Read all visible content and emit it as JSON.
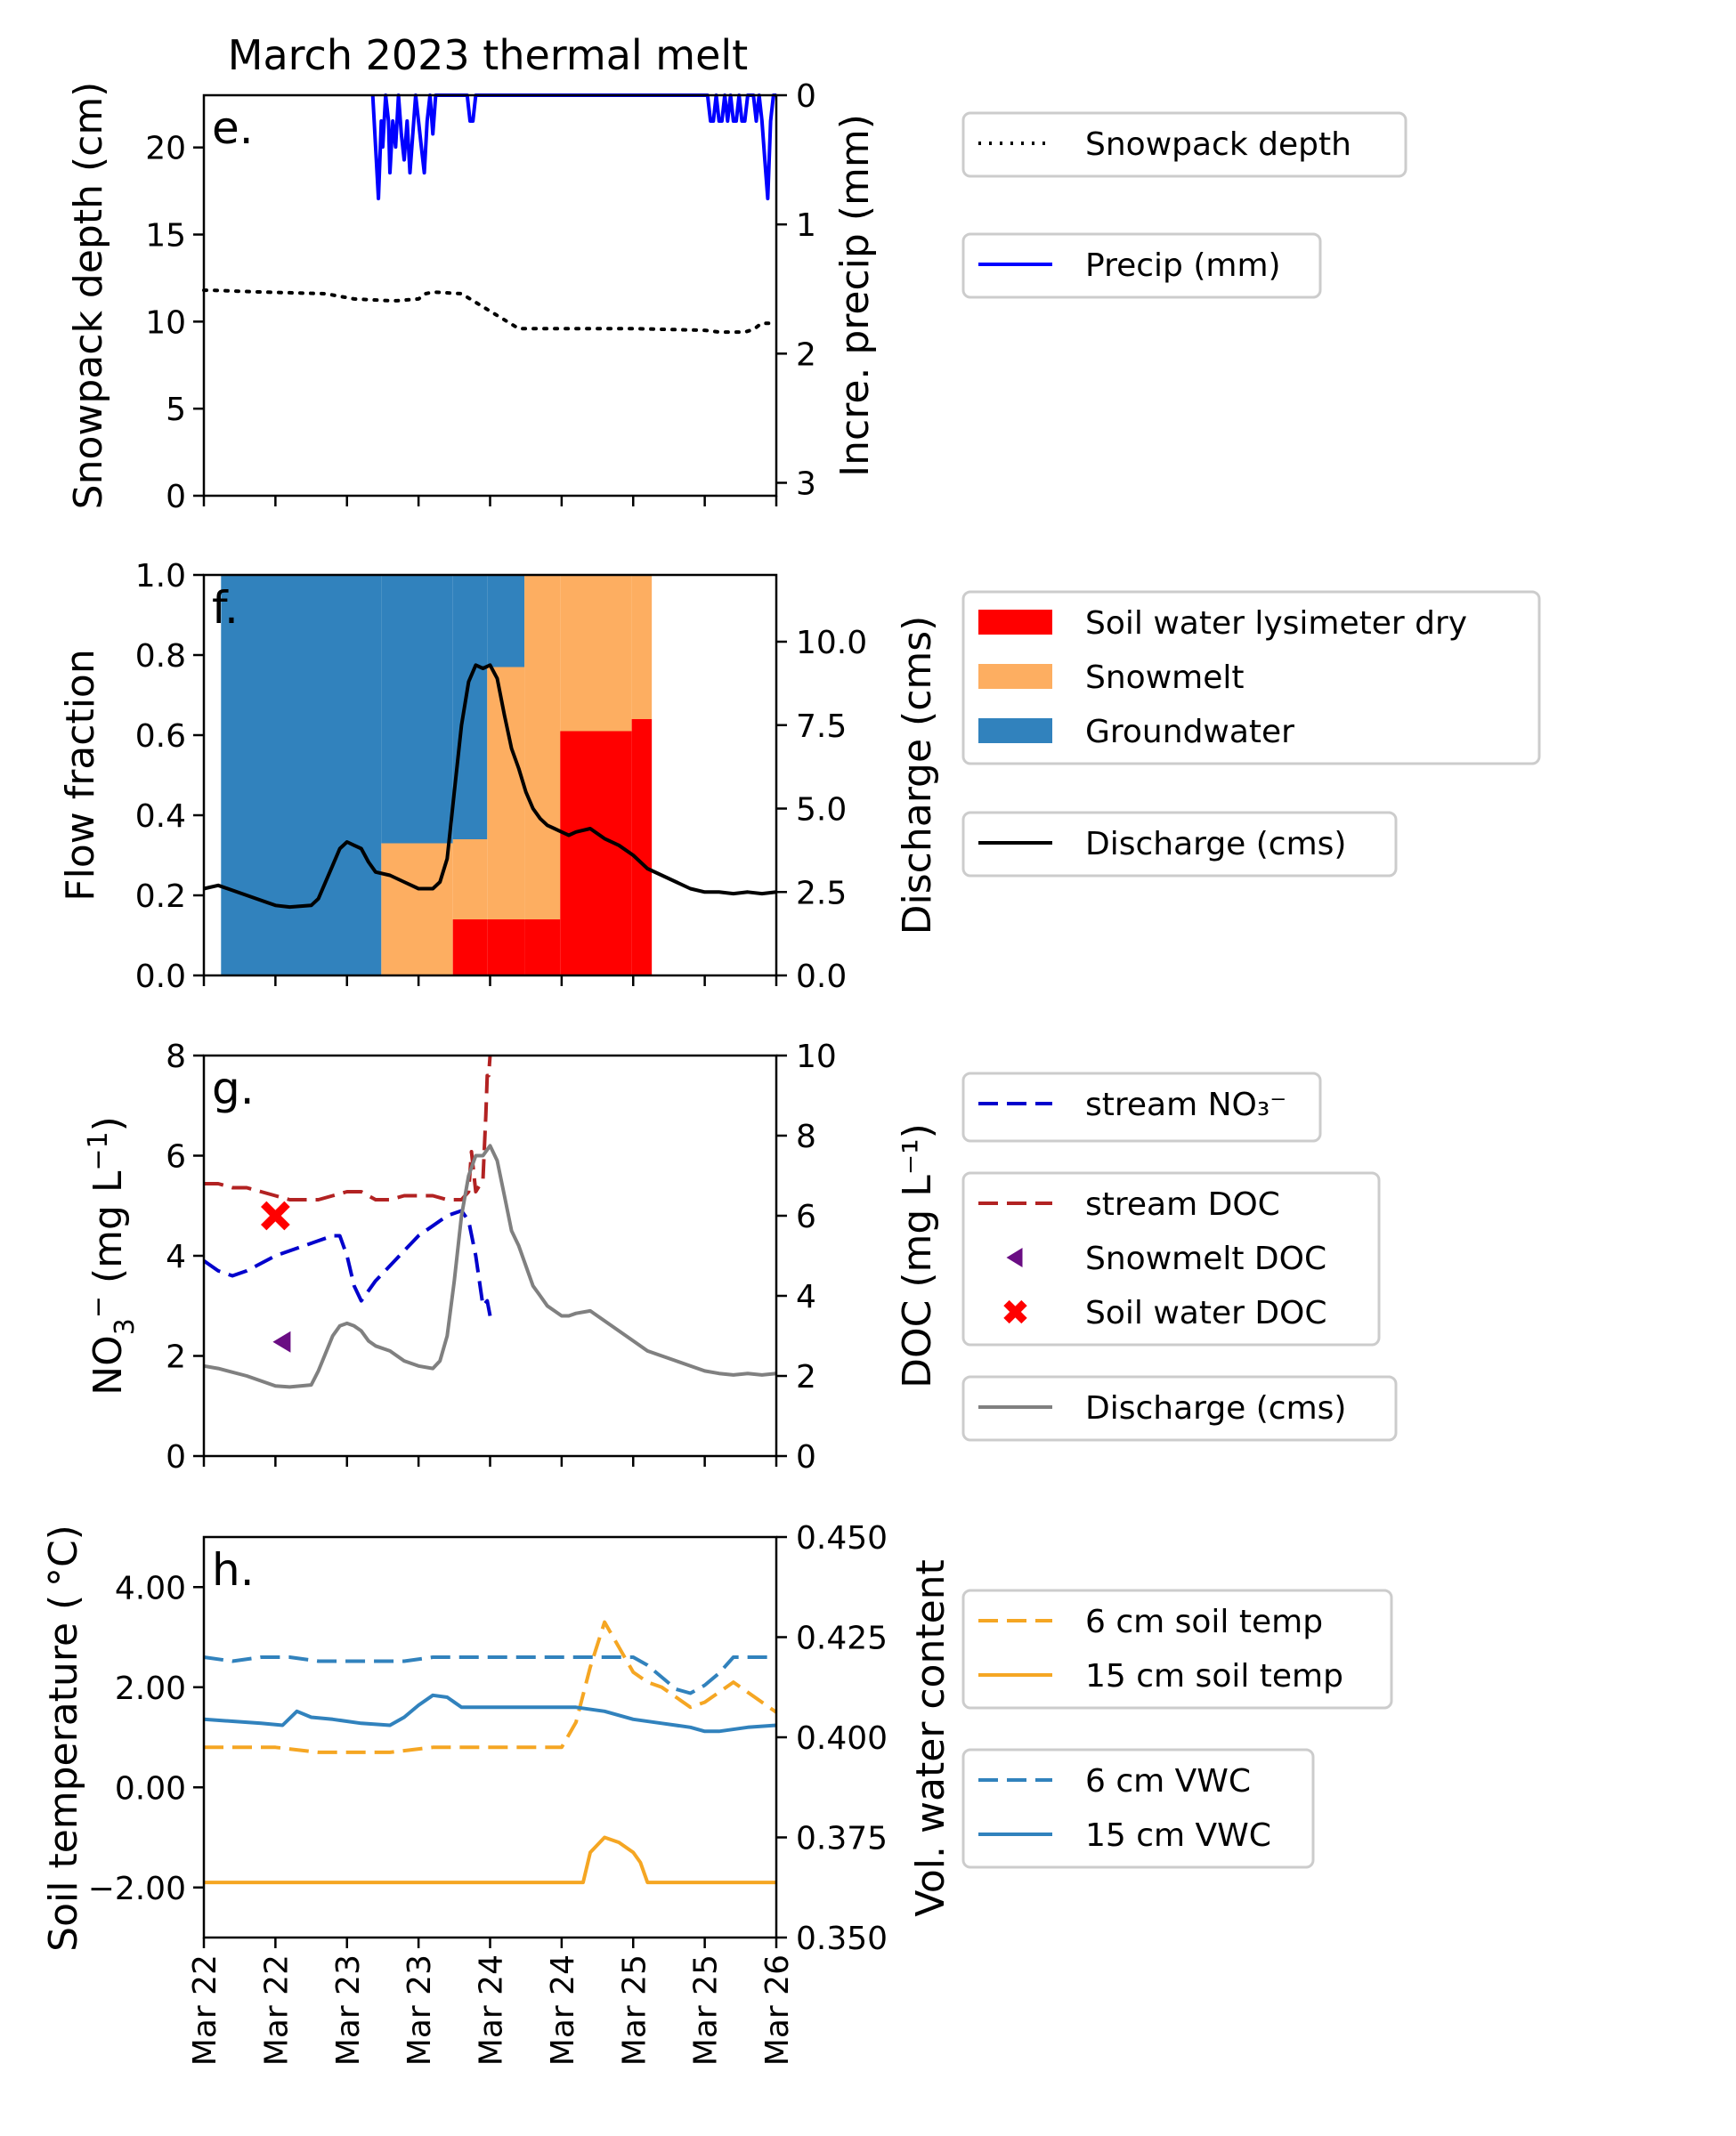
{
  "figure_title": "March 2023 thermal melt",
  "x_tick_labels": [
    "Mar 22",
    "Mar 22",
    "Mar 23",
    "Mar 23",
    "Mar 24",
    "Mar 24",
    "Mar 25",
    "Mar 25",
    "Mar 26"
  ],
  "chart_data": [
    {
      "type": "line",
      "panel": "e.",
      "ylabel": "Snowpack depth (cm)",
      "ylim": [
        0,
        23
      ],
      "yticks": [
        0,
        5,
        10,
        15,
        20
      ],
      "ylabel_right": "Incre. precip (mm)",
      "ylim_right": [
        0,
        3.1
      ],
      "y_right_inverted": true,
      "yticks_right": [
        0,
        1,
        2,
        3
      ],
      "xlim": [
        0,
        4
      ],
      "x_unit": "days since Mar 22 00:00",
      "series": [
        {
          "name": "Snowpack depth",
          "axis": "left",
          "style": "dotted",
          "color": "#000000",
          "x": [
            0.0,
            0.05,
            0.4,
            0.85,
            1.05,
            1.3,
            1.35,
            1.5,
            1.55,
            1.6,
            1.8,
            2.2,
            2.6,
            3.0,
            3.5,
            3.6,
            3.65,
            3.7,
            3.75,
            3.78,
            3.82,
            3.85,
            3.88,
            3.9,
            3.95,
            4.0
          ],
          "y": [
            11.8,
            11.8,
            11.7,
            11.6,
            11.3,
            11.2,
            11.2,
            11.3,
            11.6,
            11.7,
            11.6,
            9.6,
            9.6,
            9.6,
            9.5,
            9.4,
            9.4,
            9.4,
            9.4,
            9.4,
            9.5,
            9.6,
            9.8,
            9.9,
            9.9,
            9.9
          ]
        },
        {
          "name": "Precip (mm)",
          "axis": "right",
          "style": "solid",
          "color": "#0000ff",
          "x": [
            1.18,
            1.19,
            1.2,
            1.22,
            1.24,
            1.25,
            1.27,
            1.29,
            1.3,
            1.32,
            1.34,
            1.36,
            1.38,
            1.4,
            1.42,
            1.44,
            1.46,
            1.48,
            1.5,
            1.52,
            1.54,
            1.56,
            1.58,
            1.6,
            1.62,
            1.64,
            1.66,
            1.68,
            1.7,
            1.72,
            1.74,
            1.76,
            1.78,
            1.8,
            1.82,
            1.84,
            1.86,
            1.88,
            1.9,
            2.25,
            2.3,
            2.35,
            2.5,
            3.0,
            3.5,
            3.5,
            3.52,
            3.54,
            3.56,
            3.58,
            3.6,
            3.62,
            3.64,
            3.66,
            3.68,
            3.7,
            3.72,
            3.74,
            3.76,
            3.78,
            3.8,
            3.82,
            3.84,
            3.86,
            3.88,
            3.9,
            3.92,
            3.94,
            3.96,
            3.98,
            4.0
          ],
          "y": [
            0,
            0.2,
            0.4,
            0.8,
            0.2,
            0.4,
            0,
            0.2,
            0.6,
            0.2,
            0.4,
            0,
            0.3,
            0.5,
            0.2,
            0.6,
            0.3,
            0,
            0.2,
            0.4,
            0.6,
            0.2,
            0,
            0.3,
            0,
            0,
            0,
            0,
            0,
            0,
            0,
            0,
            0,
            0,
            0,
            0,
            0.2,
            0.2,
            0,
            0,
            0,
            0,
            0,
            0,
            0,
            0,
            0,
            0.2,
            0.2,
            0,
            0.2,
            0.2,
            0,
            0.2,
            0,
            0.2,
            0.2,
            0,
            0.2,
            0.2,
            0,
            0,
            0,
            0.2,
            0,
            0.2,
            0.5,
            0.8,
            0.2,
            0,
            0
          ]
        }
      ]
    },
    {
      "type": "area",
      "panel": "f.",
      "ylabel": "Flow fraction",
      "ylim": [
        0,
        1
      ],
      "yticks": [
        0.0,
        0.2,
        0.4,
        0.6,
        0.8,
        1.0
      ],
      "ylabel_right": "Discharge (cms)",
      "ylim_right": [
        0,
        12
      ],
      "yticks_right": [
        0.0,
        2.5,
        5.0,
        7.5,
        10.0
      ],
      "xlim": [
        0,
        4
      ],
      "x_unit": "days since Mar 22 00:00",
      "stacked_steps": [
        {
          "x_start": 0.12,
          "x_end": 1.24,
          "soil": 0.0,
          "snowmelt": 0.0,
          "groundwater": 1.0
        },
        {
          "x_start": 1.24,
          "x_end": 1.74,
          "soil": 0.0,
          "snowmelt": 0.33,
          "groundwater": 0.67
        },
        {
          "x_start": 1.74,
          "x_end": 1.98,
          "soil": 0.14,
          "snowmelt": 0.2,
          "groundwater": 0.66
        },
        {
          "x_start": 1.98,
          "x_end": 2.24,
          "soil": 0.14,
          "snowmelt": 0.63,
          "groundwater": 0.23
        },
        {
          "x_start": 2.24,
          "x_end": 2.49,
          "soil": 0.14,
          "snowmelt": 0.86,
          "groundwater": 0.0
        },
        {
          "x_start": 2.49,
          "x_end": 2.99,
          "soil": 0.61,
          "snowmelt": 0.39,
          "groundwater": 0.0
        },
        {
          "x_start": 2.99,
          "x_end": 3.13,
          "soil": 0.64,
          "snowmelt": 0.36,
          "groundwater": 0.0
        }
      ],
      "series": [
        {
          "name": "Soil water lysimeter dry",
          "color": "#ff0000"
        },
        {
          "name": "Snowmelt",
          "color": "#fdae61"
        },
        {
          "name": "Groundwater",
          "color": "#3182bd"
        },
        {
          "name": "Discharge (cms)",
          "axis": "right",
          "style": "solid",
          "color": "#000000",
          "x": [
            0.0,
            0.1,
            0.3,
            0.5,
            0.6,
            0.75,
            0.8,
            0.9,
            0.95,
            1.0,
            1.05,
            1.1,
            1.15,
            1.2,
            1.3,
            1.4,
            1.5,
            1.6,
            1.65,
            1.7,
            1.75,
            1.8,
            1.85,
            1.9,
            1.95,
            2.0,
            2.05,
            2.1,
            2.15,
            2.2,
            2.25,
            2.3,
            2.35,
            2.4,
            2.45,
            2.5,
            2.55,
            2.6,
            2.7,
            2.8,
            2.9,
            3.0,
            3.1,
            3.2,
            3.3,
            3.4,
            3.5,
            3.6,
            3.7,
            3.8,
            3.9,
            4.0
          ],
          "y": [
            2.6,
            2.7,
            2.4,
            2.1,
            2.05,
            2.1,
            2.3,
            3.3,
            3.8,
            4.0,
            3.9,
            3.8,
            3.4,
            3.1,
            3.0,
            2.8,
            2.6,
            2.6,
            2.8,
            3.5,
            5.5,
            7.5,
            8.8,
            9.3,
            9.2,
            9.3,
            8.9,
            7.8,
            6.8,
            6.2,
            5.5,
            5.0,
            4.7,
            4.5,
            4.4,
            4.3,
            4.2,
            4.3,
            4.4,
            4.1,
            3.9,
            3.6,
            3.2,
            3.0,
            2.8,
            2.6,
            2.5,
            2.5,
            2.45,
            2.5,
            2.45,
            2.5
          ]
        }
      ]
    },
    {
      "type": "line",
      "panel": "g.",
      "ylabel": "NO3- (mg L-1)",
      "ylim": [
        0,
        8
      ],
      "yticks": [
        0,
        2,
        4,
        6,
        8
      ],
      "ylabel_right": "DOC (mg L-1)",
      "ylim_right": [
        0,
        10
      ],
      "yticks_right": [
        0,
        2,
        4,
        6,
        8,
        10
      ],
      "xlim": [
        0,
        4
      ],
      "x_unit": "days since Mar 22 00:00",
      "series": [
        {
          "name": "stream NO3-",
          "axis": "left",
          "style": "dashed",
          "color": "#0000cc",
          "x": [
            0.0,
            0.1,
            0.2,
            0.3,
            0.5,
            0.7,
            0.8,
            0.9,
            0.95,
            1.0,
            1.05,
            1.1,
            1.2,
            1.3,
            1.4,
            1.5,
            1.6,
            1.7,
            1.8,
            1.85,
            1.9,
            1.95,
            1.98,
            2.0
          ],
          "y": [
            3.9,
            3.7,
            3.6,
            3.7,
            4.0,
            4.2,
            4.3,
            4.4,
            4.4,
            4.0,
            3.4,
            3.1,
            3.5,
            3.8,
            4.1,
            4.4,
            4.6,
            4.8,
            4.9,
            4.7,
            4.0,
            3.0,
            3.1,
            2.8
          ]
        },
        {
          "name": "stream DOC",
          "axis": "right",
          "style": "dashed",
          "color": "#b22222",
          "x": [
            0.0,
            0.1,
            0.2,
            0.3,
            0.4,
            0.5,
            0.6,
            0.7,
            0.8,
            0.9,
            1.0,
            1.1,
            1.2,
            1.3,
            1.4,
            1.5,
            1.6,
            1.7,
            1.8,
            1.85,
            1.87,
            1.9,
            1.95,
            1.97,
            1.98,
            1.99,
            2.0
          ],
          "y": [
            6.8,
            6.8,
            6.7,
            6.7,
            6.6,
            6.5,
            6.4,
            6.4,
            6.4,
            6.5,
            6.6,
            6.6,
            6.4,
            6.4,
            6.5,
            6.5,
            6.5,
            6.4,
            6.4,
            6.6,
            7.6,
            6.6,
            6.9,
            8.5,
            9.5,
            9.5,
            10.0
          ]
        },
        {
          "name": "Snowmelt DOC",
          "axis": "right",
          "style": "marker",
          "marker": "triangle-left",
          "color": "#6a0d83",
          "x": [
            0.55
          ],
          "y": [
            2.85
          ]
        },
        {
          "name": "Soil water DOC",
          "axis": "right",
          "style": "marker",
          "marker": "x",
          "color": "#ff0000",
          "x": [
            0.5
          ],
          "y": [
            6.0
          ]
        },
        {
          "name": "Discharge (cms)",
          "axis": "left",
          "style": "solid",
          "color": "#808080",
          "x": [
            0.0,
            0.1,
            0.3,
            0.5,
            0.6,
            0.75,
            0.8,
            0.9,
            0.95,
            1.0,
            1.05,
            1.1,
            1.15,
            1.2,
            1.3,
            1.4,
            1.5,
            1.6,
            1.65,
            1.7,
            1.75,
            1.8,
            1.85,
            1.9,
            1.95,
            2.0,
            2.05,
            2.1,
            2.15,
            2.2,
            2.25,
            2.3,
            2.35,
            2.4,
            2.45,
            2.5,
            2.55,
            2.6,
            2.7,
            2.8,
            2.9,
            3.0,
            3.1,
            3.2,
            3.3,
            3.4,
            3.5,
            3.6,
            3.7,
            3.8,
            3.9,
            4.0
          ],
          "y": [
            1.8,
            1.75,
            1.6,
            1.4,
            1.38,
            1.42,
            1.7,
            2.4,
            2.6,
            2.65,
            2.6,
            2.5,
            2.3,
            2.2,
            2.1,
            1.9,
            1.8,
            1.75,
            1.9,
            2.4,
            3.5,
            4.8,
            5.6,
            6.0,
            6.0,
            6.2,
            5.9,
            5.2,
            4.5,
            4.2,
            3.8,
            3.4,
            3.2,
            3.0,
            2.9,
            2.8,
            2.8,
            2.85,
            2.9,
            2.7,
            2.5,
            2.3,
            2.1,
            2.0,
            1.9,
            1.8,
            1.7,
            1.65,
            1.62,
            1.65,
            1.62,
            1.65
          ]
        }
      ]
    },
    {
      "type": "line",
      "panel": "h.",
      "ylabel": "Soil temperature (°C)",
      "ylim": [
        -3,
        5
      ],
      "yticks": [
        -2,
        0,
        2,
        4
      ],
      "ylabel_right": "Vol. water content",
      "ylim_right": [
        0.35,
        0.45
      ],
      "yticks_right": [
        0.35,
        0.375,
        0.4,
        0.425,
        0.45
      ],
      "xlim": [
        0,
        4
      ],
      "x_unit": "days since Mar 22 00:00",
      "series": [
        {
          "name": "6 cm soil temp",
          "axis": "left",
          "style": "dashed",
          "color": "#f5a623",
          "x": [
            0.0,
            0.2,
            0.5,
            0.8,
            1.0,
            1.3,
            1.6,
            1.9,
            2.2,
            2.4,
            2.5,
            2.6,
            2.7,
            2.8,
            2.9,
            3.0,
            3.1,
            3.2,
            3.3,
            3.4,
            3.5,
            3.6,
            3.7,
            3.8,
            3.9,
            4.0
          ],
          "y": [
            0.8,
            0.8,
            0.8,
            0.7,
            0.7,
            0.7,
            0.8,
            0.8,
            0.8,
            0.8,
            0.8,
            1.3,
            2.4,
            3.3,
            2.8,
            2.3,
            2.1,
            2.0,
            1.8,
            1.6,
            1.7,
            1.9,
            2.1,
            1.9,
            1.7,
            1.5
          ]
        },
        {
          "name": "15 cm soil temp",
          "axis": "left",
          "style": "solid",
          "color": "#f5a623",
          "x": [
            0.0,
            0.3,
            0.6,
            0.9,
            1.2,
            1.5,
            1.8,
            2.1,
            2.4,
            2.65,
            2.7,
            2.8,
            2.9,
            3.0,
            3.05,
            3.1,
            3.2,
            3.4,
            3.6,
            3.8,
            4.0
          ],
          "y": [
            -1.9,
            -1.9,
            -1.9,
            -1.9,
            -1.9,
            -1.9,
            -1.9,
            -1.9,
            -1.9,
            -1.9,
            -1.3,
            -1.0,
            -1.1,
            -1.3,
            -1.5,
            -1.9,
            -1.9,
            -1.9,
            -1.9,
            -1.9,
            -1.9
          ]
        },
        {
          "name": "6 cm VWC",
          "axis": "right",
          "style": "dashed",
          "color": "#3182bd",
          "x": [
            0.0,
            0.2,
            0.4,
            0.6,
            0.8,
            1.0,
            1.2,
            1.4,
            1.6,
            1.8,
            2.0,
            2.2,
            2.4,
            2.6,
            2.8,
            3.0,
            3.1,
            3.2,
            3.3,
            3.4,
            3.5,
            3.6,
            3.7,
            3.8,
            4.0
          ],
          "y": [
            0.42,
            0.419,
            0.42,
            0.42,
            0.419,
            0.419,
            0.419,
            0.419,
            0.42,
            0.42,
            0.42,
            0.42,
            0.42,
            0.42,
            0.42,
            0.42,
            0.418,
            0.415,
            0.412,
            0.411,
            0.413,
            0.416,
            0.42,
            0.42,
            0.42
          ]
        },
        {
          "name": "15 cm VWC",
          "axis": "right",
          "style": "solid",
          "color": "#3182bd",
          "x": [
            0.0,
            0.2,
            0.4,
            0.55,
            0.65,
            0.75,
            0.9,
            1.1,
            1.3,
            1.4,
            1.5,
            1.6,
            1.7,
            1.8,
            2.0,
            2.2,
            2.4,
            2.6,
            2.8,
            3.0,
            3.2,
            3.4,
            3.5,
            3.6,
            3.8,
            4.0
          ],
          "y": [
            0.4045,
            0.404,
            0.4035,
            0.403,
            0.4065,
            0.405,
            0.4045,
            0.4035,
            0.403,
            0.405,
            0.408,
            0.4105,
            0.41,
            0.4075,
            0.4075,
            0.4075,
            0.4075,
            0.4075,
            0.4065,
            0.4045,
            0.4035,
            0.4025,
            0.4015,
            0.4015,
            0.4025,
            0.403
          ]
        }
      ]
    }
  ],
  "legends": [
    [
      "Snowpack depth"
    ],
    [
      "Precip (mm)"
    ],
    [
      "Soil water lysimeter dry",
      "Snowmelt",
      "Groundwater"
    ],
    [
      "Discharge (cms)"
    ],
    [
      "stream NO₃⁻"
    ],
    [
      "stream DOC",
      "Snowmelt DOC",
      "Soil water DOC"
    ],
    [
      "Discharge (cms)"
    ],
    [
      "6 cm soil temp",
      "15 cm soil temp"
    ],
    [
      "6 cm VWC",
      "15 cm VWC"
    ]
  ]
}
